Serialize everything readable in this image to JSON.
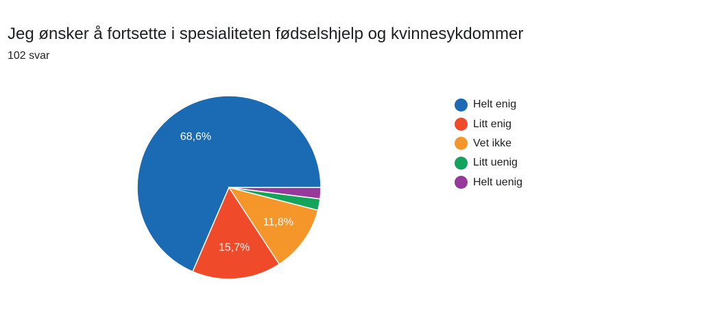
{
  "chart_data": {
    "type": "pie",
    "title": "Jeg ønsker å fortsette i spesialiteten fødselshjelp og kvinnesykdommer",
    "subtitle": "102 svar",
    "slices": [
      {
        "label": "Helt enig",
        "value": 68.6,
        "display": "68,6%",
        "color": "#1a6ab4"
      },
      {
        "label": "Litt enig",
        "value": 15.7,
        "display": "15,7%",
        "color": "#ef4b2b"
      },
      {
        "label": "Vet ikke",
        "value": 11.8,
        "display": "11,8%",
        "color": "#f5962a"
      },
      {
        "label": "Litt uenig",
        "value": 2.0,
        "display": "",
        "color": "#14a35a"
      },
      {
        "label": "Helt uenig",
        "value": 2.0,
        "display": "",
        "color": "#96399a"
      }
    ],
    "legend_position": "right"
  }
}
